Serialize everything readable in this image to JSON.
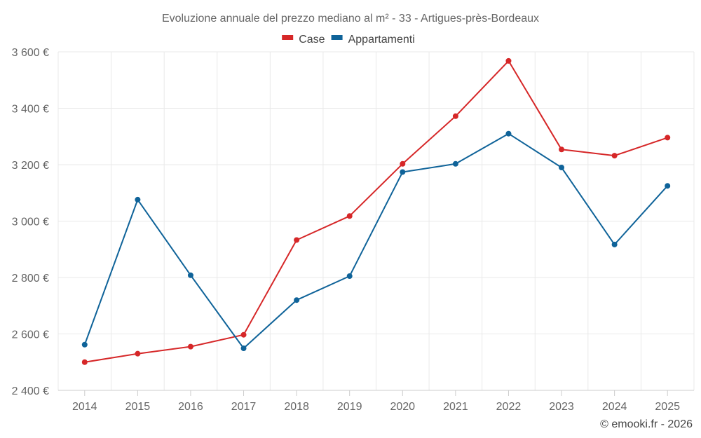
{
  "chart_data": {
    "type": "line",
    "title": "Evoluzione annuale del prezzo mediano al m² - 33 - Artigues-près-Bordeaux",
    "xlabel": "",
    "ylabel": "",
    "categories": [
      "2014",
      "2015",
      "2016",
      "2017",
      "2018",
      "2019",
      "2020",
      "2021",
      "2022",
      "2023",
      "2024",
      "2025"
    ],
    "ylim": [
      2400,
      3600
    ],
    "yticks": [
      2400,
      2600,
      2800,
      3000,
      3200,
      3400,
      3600
    ],
    "ytick_labels": [
      "2 400 €",
      "2 600 €",
      "2 800 €",
      "3 000 €",
      "3 200 €",
      "3 400 €",
      "3 600 €"
    ],
    "grid": true,
    "legend_position": "top-center",
    "series": [
      {
        "name": "Case",
        "color": "#d62728",
        "values": [
          2500,
          2530,
          2555,
          2597,
          2933,
          3018,
          3203,
          3372,
          3568,
          3254,
          3232,
          3296
        ]
      },
      {
        "name": "Appartamenti",
        "color": "#0f6399",
        "values": [
          2562,
          3076,
          2808,
          2549,
          2720,
          2805,
          3174,
          3203,
          3310,
          3190,
          2917,
          3125
        ]
      }
    ],
    "credit": "© emooki.fr - 2026"
  }
}
